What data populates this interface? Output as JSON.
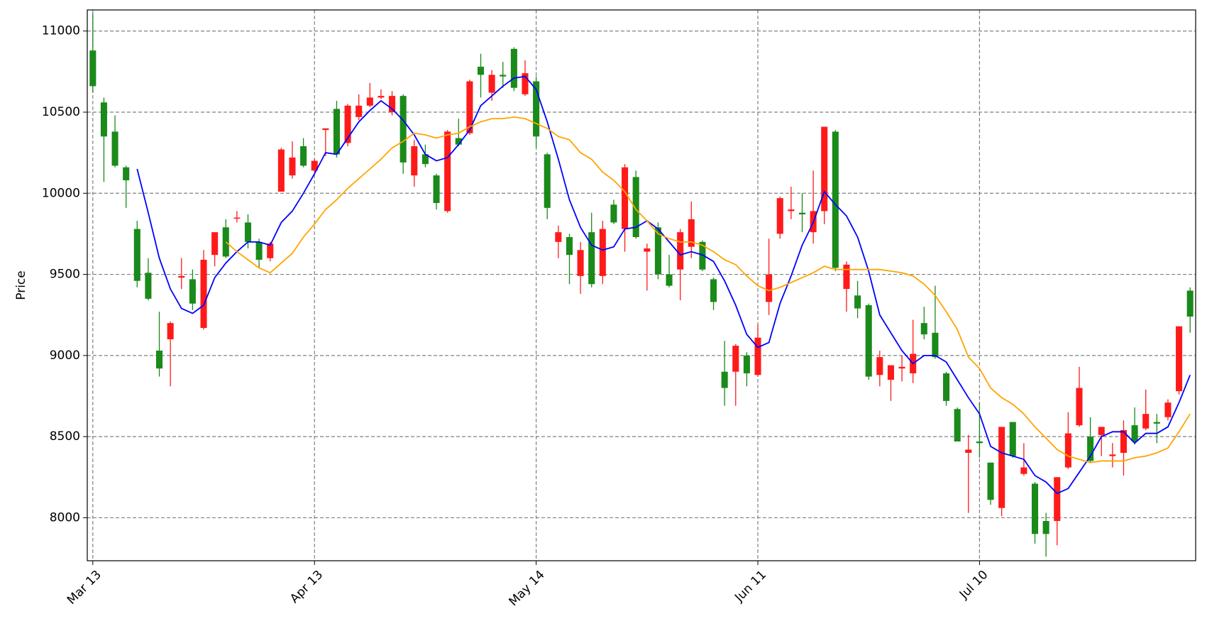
{
  "chart_data": {
    "type": "candlestick",
    "y_label": "Price",
    "up_color": "#ff1a1a",
    "down_color": "#1a8a1a",
    "grid": true,
    "xlim": [
      -0.5,
      99.5
    ],
    "xticks": [
      {
        "value": 0,
        "label": "Mar 13"
      },
      {
        "value": 20,
        "label": "Apr 13"
      },
      {
        "value": 40,
        "label": "May 14"
      },
      {
        "value": 60,
        "label": "Jun 11"
      },
      {
        "value": 80,
        "label": "Jul 10"
      }
    ],
    "ylim": [
      7735,
      11130
    ],
    "yticks": [
      8000,
      8500,
      9000,
      9500,
      10000,
      10500,
      11000
    ],
    "open": [
      10880,
      10560,
      10380,
      10160,
      9780,
      9510,
      9030,
      9100,
      9480,
      9470,
      9170,
      9620,
      9790,
      9850,
      9820,
      9700,
      9600,
      10010,
      10110,
      10290,
      10140,
      10390,
      10520,
      10310,
      10470,
      10540,
      10590,
      10500,
      10600,
      10110,
      10240,
      10110,
      9890,
      10340,
      10370,
      10780,
      10620,
      10730,
      10890,
      10610,
      10690,
      10240,
      9700,
      9730,
      9490,
      9760,
      9490,
      9930,
      9780,
      10100,
      9640,
      9790,
      9500,
      9530,
      9670,
      9700,
      9470,
      8900,
      8900,
      9000,
      8880,
      9330,
      9750,
      9890,
      9880,
      9760,
      9890,
      10380,
      9410,
      9370,
      9310,
      8880,
      8850,
      8920,
      8890,
      9200,
      9140,
      8890,
      8670,
      8400,
      8470,
      8340,
      8060,
      8590,
      8270,
      8210,
      7980,
      7980,
      8310,
      8570,
      8500,
      8510,
      8380,
      8400,
      8570,
      8550,
      8590,
      8620,
      8780,
      9400
    ],
    "high": [
      11110,
      10590,
      10480,
      10170,
      9830,
      9600,
      9270,
      9210,
      9600,
      9530,
      9650,
      9760,
      9840,
      9890,
      9870,
      9720,
      9700,
      10280,
      10320,
      10340,
      10210,
      10400,
      10570,
      10550,
      10610,
      10680,
      10640,
      10630,
      10610,
      10330,
      10300,
      10120,
      10390,
      10460,
      10700,
      10860,
      10760,
      10810,
      10900,
      10820,
      10720,
      10250,
      9800,
      9750,
      9700,
      9880,
      9830,
      9960,
      10180,
      10140,
      9690,
      9820,
      9620,
      9780,
      9950,
      9710,
      9480,
      9090,
      9070,
      9020,
      9190,
      9720,
      9980,
      10040,
      10000,
      10140,
      10410,
      10390,
      9580,
      9460,
      9320,
      9030,
      8940,
      9000,
      9220,
      9300,
      9430,
      8900,
      8680,
      8510,
      8710,
      8340,
      8560,
      8590,
      8460,
      8220,
      8030,
      8250,
      8650,
      8930,
      8620,
      8560,
      8460,
      8600,
      8680,
      8790,
      8640,
      8730,
      9180,
      9420
    ],
    "low": [
      10620,
      10070,
      10160,
      9910,
      9420,
      9340,
      8870,
      8810,
      9410,
      9280,
      9160,
      9550,
      9600,
      9820,
      9660,
      9540,
      9580,
      10010,
      10090,
      10160,
      10130,
      10230,
      10220,
      10290,
      10450,
      10530,
      10580,
      10480,
      10120,
      10040,
      10160,
      9900,
      9880,
      10290,
      10360,
      10590,
      10570,
      10650,
      10630,
      10600,
      10280,
      9840,
      9600,
      9440,
      9380,
      9420,
      9440,
      9810,
      9640,
      9720,
      9400,
      9470,
      9420,
      9340,
      9600,
      9520,
      9280,
      8690,
      8690,
      8810,
      8870,
      9250,
      9720,
      9840,
      9760,
      9690,
      9810,
      9520,
      9270,
      9230,
      8850,
      8810,
      8720,
      8840,
      8830,
      9100,
      8980,
      8690,
      8470,
      8030,
      8370,
      8080,
      8010,
      8370,
      8260,
      7840,
      7760,
      7830,
      8300,
      8560,
      8340,
      8380,
      8310,
      8260,
      8450,
      8540,
      8460,
      8600,
      8760,
      9140
    ],
    "close": [
      10660,
      10350,
      10170,
      10080,
      9460,
      9350,
      8920,
      9200,
      9490,
      9320,
      9590,
      9760,
      9610,
      9850,
      9700,
      9590,
      9690,
      10270,
      10220,
      10170,
      10200,
      10400,
      10240,
      10540,
      10540,
      10590,
      10600,
      10600,
      10190,
      10290,
      10180,
      9940,
      10380,
      10300,
      10690,
      10730,
      10730,
      10720,
      10650,
      10740,
      10350,
      9910,
      9760,
      9620,
      9650,
      9440,
      9780,
      9820,
      10160,
      9730,
      9660,
      9500,
      9430,
      9760,
      9840,
      9530,
      9330,
      8800,
      9060,
      8890,
      9110,
      9500,
      9970,
      9900,
      9870,
      9890,
      10410,
      9540,
      9560,
      9290,
      8870,
      8990,
      8940,
      8930,
      9010,
      9130,
      8990,
      8720,
      8470,
      8420,
      8460,
      8110,
      8560,
      8380,
      8310,
      7900,
      7900,
      8250,
      8520,
      8800,
      8350,
      8560,
      8390,
      8540,
      8470,
      8640,
      8580,
      8710,
      9180,
      9240
    ],
    "lines": [
      {
        "color": "#0000ff",
        "values": [
          null,
          null,
          null,
          null,
          10150,
          9880,
          9600,
          9410,
          9290,
          9260,
          9310,
          9480,
          9570,
          9640,
          9700,
          9700,
          9680,
          9820,
          9890,
          10000,
          10120,
          10250,
          10240,
          10340,
          10440,
          10510,
          10570,
          10520,
          10450,
          10360,
          10240,
          10200,
          10220,
          10300,
          10390,
          10540,
          10600,
          10660,
          10710,
          10720,
          10640,
          10440,
          10210,
          9960,
          9790,
          9680,
          9650,
          9670,
          9780,
          9790,
          9830,
          9780,
          9700,
          9620,
          9640,
          9620,
          9580,
          9460,
          9310,
          9130,
          9050,
          9080,
          9320,
          9490,
          9680,
          9820,
          10010,
          9930,
          9860,
          9730,
          9520,
          9250,
          9140,
          9030,
          8950,
          9000,
          9000,
          8960,
          8850,
          8740,
          8640,
          8440,
          8400,
          8380,
          8360,
          8260,
          8220,
          8150,
          8180,
          8280,
          8380,
          8500,
          8530,
          8530,
          8460,
          8520,
          8520,
          8560,
          8710,
          8880
        ]
      },
      {
        "color": "#ffa500",
        "values": [
          null,
          null,
          null,
          null,
          null,
          null,
          null,
          null,
          null,
          null,
          null,
          null,
          9700,
          9640,
          9590,
          9540,
          9510,
          9570,
          9630,
          9730,
          9810,
          9900,
          9960,
          10030,
          10090,
          10150,
          10210,
          10280,
          10320,
          10370,
          10360,
          10340,
          10360,
          10370,
          10410,
          10440,
          10460,
          10460,
          10470,
          10460,
          10430,
          10400,
          10350,
          10330,
          10250,
          10210,
          10130,
          10080,
          10010,
          9900,
          9830,
          9750,
          9720,
          9700,
          9700,
          9680,
          9640,
          9590,
          9560,
          9490,
          9430,
          9400,
          9420,
          9450,
          9480,
          9510,
          9550,
          9530,
          9530,
          9530,
          9530,
          9530,
          9520,
          9510,
          9490,
          9440,
          9370,
          9270,
          9160,
          8990,
          8920,
          8800,
          8740,
          8700,
          8640,
          8560,
          8490,
          8420,
          8380,
          8360,
          8340,
          8350,
          8350,
          8350,
          8370,
          8380,
          8400,
          8430,
          8530,
          8640
        ]
      }
    ]
  }
}
